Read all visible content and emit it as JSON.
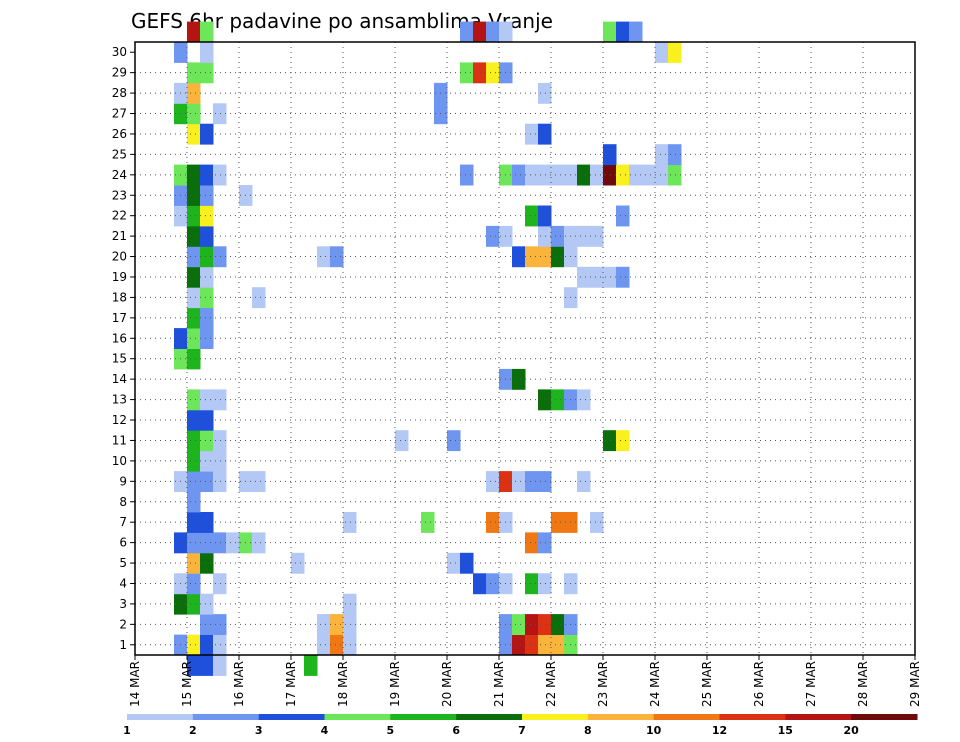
{
  "chart_data": {
    "type": "heatmap",
    "title": "GEFS 6hr padavine po ansamblima Vranje",
    "xlabel": "",
    "ylabel": "",
    "x_tick_labels": [
      "14 MAR",
      "15 MAR",
      "16 MAR",
      "17 MAR",
      "18 MAR",
      "19 MAR",
      "20 MAR",
      "21 MAR",
      "22 MAR",
      "23 MAR",
      "24 MAR",
      "25 MAR",
      "26 MAR",
      "27 MAR",
      "28 MAR",
      "29 MAR"
    ],
    "y_tick_labels": [
      "1",
      "2",
      "3",
      "4",
      "5",
      "6",
      "7",
      "8",
      "9",
      "10",
      "11",
      "12",
      "13",
      "14",
      "15",
      "16",
      "17",
      "18",
      "19",
      "20",
      "21",
      "22",
      "23",
      "24",
      "25",
      "26",
      "27",
      "28",
      "29",
      "30"
    ],
    "x_unit": "6-hour step from 14 MAR",
    "y_unit": "ensemble member",
    "grid": true,
    "colorbar": {
      "levels": [
        "1",
        "2",
        "3",
        "4",
        "5",
        "6",
        "7",
        "8",
        "10",
        "12",
        "15",
        "20"
      ],
      "colors": [
        "#b4c8f5",
        "#6e96f0",
        "#1e50dc",
        "#6ee65a",
        "#1eb41e",
        "#0a6e0a",
        "#faf01e",
        "#fab43c",
        "#f07814",
        "#dc3214",
        "#b41414",
        "#6e0a0a"
      ]
    },
    "cells": [
      [
        4,
        0,
        3
      ],
      [
        5,
        0,
        3
      ],
      [
        13,
        0,
        5
      ],
      [
        6,
        0,
        1
      ],
      [
        3,
        1,
        2
      ],
      [
        4,
        1,
        7
      ],
      [
        5,
        1,
        3
      ],
      [
        6,
        1,
        1
      ],
      [
        14,
        1,
        1
      ],
      [
        15,
        1,
        9
      ],
      [
        16,
        1,
        1
      ],
      [
        28,
        1,
        2
      ],
      [
        29,
        1,
        11
      ],
      [
        30,
        1,
        10
      ],
      [
        31,
        1,
        8
      ],
      [
        32,
        1,
        8
      ],
      [
        33,
        1,
        4
      ],
      [
        5,
        2,
        2
      ],
      [
        6,
        2,
        2
      ],
      [
        14,
        2,
        1
      ],
      [
        15,
        2,
        8
      ],
      [
        16,
        2,
        1
      ],
      [
        28,
        2,
        2
      ],
      [
        29,
        2,
        4
      ],
      [
        30,
        2,
        11
      ],
      [
        31,
        2,
        10
      ],
      [
        32,
        2,
        6
      ],
      [
        33,
        2,
        2
      ],
      [
        3,
        3,
        6
      ],
      [
        4,
        3,
        5
      ],
      [
        5,
        3,
        1
      ],
      [
        16,
        3,
        1
      ],
      [
        3,
        4,
        1
      ],
      [
        4,
        4,
        2
      ],
      [
        6,
        4,
        1
      ],
      [
        26,
        4,
        3
      ],
      [
        27,
        4,
        2
      ],
      [
        28,
        4,
        1
      ],
      [
        30,
        4,
        5
      ],
      [
        31,
        4,
        1
      ],
      [
        33,
        4,
        1
      ],
      [
        4,
        5,
        8
      ],
      [
        5,
        5,
        6
      ],
      [
        12,
        5,
        1
      ],
      [
        24,
        5,
        1
      ],
      [
        25,
        5,
        3
      ],
      [
        3,
        6,
        3
      ],
      [
        4,
        6,
        2
      ],
      [
        5,
        6,
        2
      ],
      [
        6,
        6,
        2
      ],
      [
        7,
        6,
        1
      ],
      [
        8,
        6,
        4
      ],
      [
        9,
        6,
        1
      ],
      [
        30,
        6,
        9
      ],
      [
        31,
        6,
        2
      ],
      [
        4,
        7,
        3
      ],
      [
        5,
        7,
        3
      ],
      [
        16,
        7,
        1
      ],
      [
        22,
        7,
        4
      ],
      [
        27,
        7,
        9
      ],
      [
        28,
        7,
        1
      ],
      [
        32,
        7,
        9
      ],
      [
        33,
        7,
        9
      ],
      [
        35,
        7,
        1
      ],
      [
        4,
        8,
        2
      ],
      [
        3,
        9,
        1
      ],
      [
        4,
        9,
        2
      ],
      [
        5,
        9,
        2
      ],
      [
        6,
        9,
        1
      ],
      [
        8,
        9,
        1
      ],
      [
        9,
        9,
        1
      ],
      [
        27,
        9,
        1
      ],
      [
        28,
        9,
        10
      ],
      [
        29,
        9,
        1
      ],
      [
        30,
        9,
        2
      ],
      [
        31,
        9,
        2
      ],
      [
        34,
        9,
        1
      ],
      [
        4,
        10,
        5
      ],
      [
        5,
        10,
        1
      ],
      [
        6,
        10,
        1
      ],
      [
        4,
        11,
        5
      ],
      [
        5,
        11,
        4
      ],
      [
        6,
        11,
        1
      ],
      [
        20,
        11,
        1
      ],
      [
        24,
        11,
        2
      ],
      [
        36,
        11,
        6
      ],
      [
        37,
        11,
        7
      ],
      [
        4,
        12,
        3
      ],
      [
        5,
        12,
        3
      ],
      [
        4,
        13,
        4
      ],
      [
        5,
        13,
        1
      ],
      [
        6,
        13,
        1
      ],
      [
        31,
        13,
        6
      ],
      [
        32,
        13,
        5
      ],
      [
        33,
        13,
        2
      ],
      [
        34,
        13,
        1
      ],
      [
        28,
        14,
        2
      ],
      [
        29,
        14,
        6
      ],
      [
        3,
        15,
        4
      ],
      [
        4,
        15,
        5
      ],
      [
        3,
        16,
        3
      ],
      [
        4,
        16,
        4
      ],
      [
        5,
        16,
        2
      ],
      [
        4,
        17,
        5
      ],
      [
        5,
        17,
        2
      ],
      [
        4,
        18,
        1
      ],
      [
        5,
        18,
        4
      ],
      [
        9,
        18,
        1
      ],
      [
        33,
        18,
        1
      ],
      [
        4,
        19,
        6
      ],
      [
        5,
        19,
        1
      ],
      [
        34,
        19,
        1
      ],
      [
        35,
        19,
        1
      ],
      [
        36,
        19,
        1
      ],
      [
        37,
        19,
        2
      ],
      [
        4,
        20,
        2
      ],
      [
        5,
        20,
        5
      ],
      [
        6,
        20,
        2
      ],
      [
        14,
        20,
        1
      ],
      [
        15,
        20,
        2
      ],
      [
        29,
        20,
        3
      ],
      [
        30,
        20,
        8
      ],
      [
        31,
        20,
        8
      ],
      [
        32,
        20,
        6
      ],
      [
        33,
        20,
        1
      ],
      [
        4,
        21,
        6
      ],
      [
        5,
        21,
        3
      ],
      [
        27,
        21,
        2
      ],
      [
        28,
        21,
        1
      ],
      [
        31,
        21,
        1
      ],
      [
        32,
        21,
        2
      ],
      [
        33,
        21,
        1
      ],
      [
        34,
        21,
        1
      ],
      [
        35,
        21,
        1
      ],
      [
        3,
        22,
        1
      ],
      [
        4,
        22,
        5
      ],
      [
        5,
        22,
        7
      ],
      [
        30,
        22,
        5
      ],
      [
        31,
        22,
        3
      ],
      [
        37,
        22,
        2
      ],
      [
        3,
        23,
        2
      ],
      [
        4,
        23,
        6
      ],
      [
        5,
        23,
        2
      ],
      [
        8,
        23,
        1
      ],
      [
        3,
        24,
        4
      ],
      [
        4,
        24,
        6
      ],
      [
        5,
        24,
        3
      ],
      [
        6,
        24,
        1
      ],
      [
        25,
        24,
        2
      ],
      [
        28,
        24,
        4
      ],
      [
        29,
        24,
        2
      ],
      [
        30,
        24,
        1
      ],
      [
        31,
        24,
        1
      ],
      [
        32,
        24,
        1
      ],
      [
        33,
        24,
        1
      ],
      [
        34,
        24,
        6
      ],
      [
        35,
        24,
        1
      ],
      [
        36,
        24,
        12
      ],
      [
        37,
        24,
        7
      ],
      [
        38,
        24,
        1
      ],
      [
        39,
        24,
        1
      ],
      [
        40,
        24,
        1
      ],
      [
        41,
        24,
        4
      ],
      [
        36,
        25,
        3
      ],
      [
        40,
        25,
        1
      ],
      [
        41,
        25,
        2
      ],
      [
        4,
        26,
        7
      ],
      [
        5,
        26,
        3
      ],
      [
        30,
        26,
        1
      ],
      [
        31,
        26,
        3
      ],
      [
        3,
        27,
        5
      ],
      [
        4,
        27,
        4
      ],
      [
        6,
        27,
        1
      ],
      [
        23,
        27,
        2
      ],
      [
        3,
        28,
        1
      ],
      [
        4,
        28,
        8
      ],
      [
        23,
        28,
        2
      ],
      [
        31,
        28,
        1
      ],
      [
        4,
        29,
        4
      ],
      [
        5,
        29,
        4
      ],
      [
        25,
        29,
        4
      ],
      [
        26,
        29,
        10
      ],
      [
        27,
        29,
        7
      ],
      [
        28,
        29,
        2
      ],
      [
        3,
        30,
        2
      ],
      [
        5,
        30,
        1
      ],
      [
        40,
        30,
        1
      ],
      [
        41,
        30,
        7
      ],
      [
        4,
        31,
        11
      ],
      [
        5,
        31,
        4
      ],
      [
        25,
        31,
        2
      ],
      [
        26,
        31,
        11
      ],
      [
        27,
        31,
        2
      ],
      [
        28,
        31,
        1
      ],
      [
        36,
        31,
        4
      ],
      [
        37,
        31,
        3
      ],
      [
        38,
        31,
        2
      ]
    ]
  }
}
